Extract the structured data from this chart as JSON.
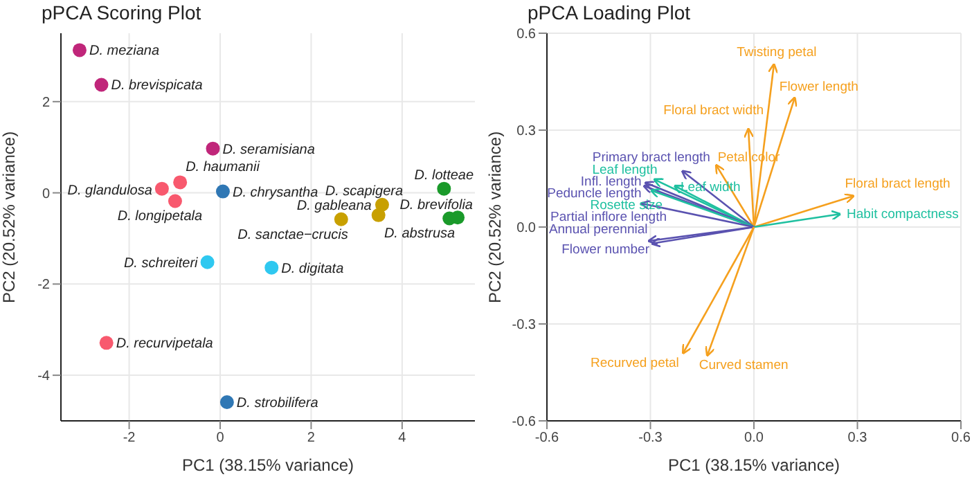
{
  "chart_data": [
    {
      "type": "scatter",
      "title": "pPCA Scoring Plot",
      "xlabel": "PC1 (38.15% variance)",
      "ylabel": "PC2 (20.52% variance)",
      "xlim": [
        -3.5,
        5.6
      ],
      "ylim": [
        -5,
        3.5
      ],
      "xticks": [
        -2,
        0,
        2,
        4
      ],
      "yticks": [
        -4,
        -2,
        0,
        2
      ],
      "grid": true,
      "legend": false,
      "marker": "circle",
      "series": [
        {
          "color": "#c0267a",
          "x": [
            -3.09,
            -2.61,
            -0.16
          ],
          "values": [
            3.13,
            2.37,
            0.97
          ]
        },
        {
          "color": "#f8596e",
          "x": [
            -0.88,
            -1.28,
            -0.99,
            -2.5
          ],
          "values": [
            0.23,
            0.09,
            -0.18,
            -3.29
          ]
        },
        {
          "color": "#2f77b4",
          "x": [
            0.06,
            0.15
          ],
          "values": [
            0.03,
            -4.59
          ]
        },
        {
          "color": "#2fc8f0",
          "x": [
            -0.28,
            1.13
          ],
          "values": [
            -1.52,
            -1.64
          ]
        },
        {
          "color": "#c8a000",
          "x": [
            3.56,
            2.66,
            3.48
          ],
          "values": [
            -0.26,
            -0.58,
            -0.49
          ]
        },
        {
          "color": "#1a9a2a",
          "x": [
            4.92,
            5.22,
            5.04
          ],
          "values": [
            0.09,
            -0.54,
            -0.56
          ]
        }
      ],
      "annotations": [
        {
          "text": "D. meziana",
          "x": -3.09,
          "y": 3.13
        },
        {
          "text": "D. brevispicata",
          "x": -2.61,
          "y": 2.37
        },
        {
          "text": "D. seramisiana",
          "x": -0.16,
          "y": 0.97
        },
        {
          "text": "D. haumanii",
          "x": -0.88,
          "y": 0.23
        },
        {
          "text": "D. glandulosa",
          "x": -1.28,
          "y": 0.09
        },
        {
          "text": "D. longipetala",
          "x": -0.99,
          "y": -0.18
        },
        {
          "text": "D. recurvipetala",
          "x": -2.5,
          "y": -3.29
        },
        {
          "text": "D. chrysantha",
          "x": 0.06,
          "y": 0.03
        },
        {
          "text": "D. strobilifera",
          "x": 0.15,
          "y": -4.59
        },
        {
          "text": "D. schreiteri",
          "x": -0.28,
          "y": -1.52
        },
        {
          "text": "D. digitata",
          "x": 1.13,
          "y": -1.64
        },
        {
          "text": "D. scapigera",
          "x": 3.56,
          "y": -0.26
        },
        {
          "text": "D. gableana",
          "x": 3.48,
          "y": -0.49
        },
        {
          "text": "D. sanctae−crucis",
          "x": 2.66,
          "y": -0.58
        },
        {
          "text": "D. lotteae",
          "x": 4.92,
          "y": 0.09
        },
        {
          "text": "D. brevifolia",
          "x": 5.22,
          "y": -0.54
        },
        {
          "text": "D. abstrusa",
          "x": 5.04,
          "y": -0.56
        }
      ]
    },
    {
      "type": "line",
      "title": "pPCA Loading Plot",
      "xlabel": "PC1 (38.15% variance)",
      "ylabel": "PC2 (20.52% variance)",
      "xlim": [
        -0.6,
        0.6
      ],
      "ylim": [
        -0.6,
        0.6
      ],
      "xticks": [
        -0.6,
        -0.3,
        {
          "value": 0,
          "label": "0.0"
        },
        0.3,
        0.6
      ],
      "yticks": [
        -0.6,
        -0.3,
        {
          "value": 0,
          "label": "0.0"
        },
        0.3,
        0.6
      ],
      "grid": true,
      "legend": false,
      "series": [
        {
          "name": "Twisting petal",
          "color": "#f5a01e",
          "x": [
            0,
            0.058
          ],
          "values": [
            0,
            0.503
          ]
        },
        {
          "name": "Flower length",
          "color": "#f5a01e",
          "x": [
            0,
            0.118
          ],
          "values": [
            0,
            0.4
          ]
        },
        {
          "name": "Floral bract width",
          "color": "#f5a01e",
          "x": [
            0,
            -0.016
          ],
          "values": [
            0,
            0.303
          ]
        },
        {
          "name": "Petal color",
          "color": "#f5a01e",
          "x": [
            0,
            -0.109
          ],
          "values": [
            0,
            0.191
          ]
        },
        {
          "name": "Floral bract length",
          "color": "#f5a01e",
          "x": [
            0,
            0.288
          ],
          "values": [
            0,
            0.096
          ]
        },
        {
          "name": "Habit compactness",
          "color": "#1fc0a0",
          "x": [
            0,
            0.249
          ],
          "values": [
            0,
            0.04
          ]
        },
        {
          "name": "Primary bract length",
          "color": "#5a52b0",
          "x": [
            0,
            -0.207
          ],
          "values": [
            0,
            0.173
          ]
        },
        {
          "name": "Leaf length",
          "color": "#1fc0a0",
          "x": [
            0,
            -0.288
          ],
          "values": [
            0,
            0.147
          ]
        },
        {
          "name": "Leaf width",
          "color": "#1fc0a0",
          "x": [
            0,
            -0.229
          ],
          "values": [
            0,
            0.127
          ]
        },
        {
          "name": "Infl. length",
          "color": "#5a52b0",
          "x": [
            0,
            -0.314
          ],
          "values": [
            0,
            0.137
          ]
        },
        {
          "name": "Peduncle length",
          "color": "#5a52b0",
          "x": [
            0,
            -0.318
          ],
          "values": [
            0,
            0.127
          ]
        },
        {
          "name": "Rosette size",
          "color": "#1fc0a0",
          "x": [
            0,
            -0.297
          ],
          "values": [
            0,
            0.113
          ]
        },
        {
          "name": "Partial inflore length",
          "color": "#5a52b0",
          "x": [
            0,
            -0.325
          ],
          "values": [
            0,
            0.073
          ]
        },
        {
          "name": "Annual perennial",
          "color": "#5a52b0",
          "x": [
            0,
            -0.304
          ],
          "values": [
            0,
            -0.043
          ]
        },
        {
          "name": "Flower number",
          "color": "#5a52b0",
          "x": [
            0,
            -0.295
          ],
          "values": [
            0,
            -0.051
          ]
        },
        {
          "name": "Recurved petal",
          "color": "#f5a01e",
          "x": [
            0,
            -0.205
          ],
          "values": [
            0,
            -0.39
          ]
        },
        {
          "name": "Curved stamen",
          "color": "#f5a01e",
          "x": [
            0,
            -0.135
          ],
          "values": [
            0,
            -0.397
          ]
        }
      ]
    }
  ]
}
